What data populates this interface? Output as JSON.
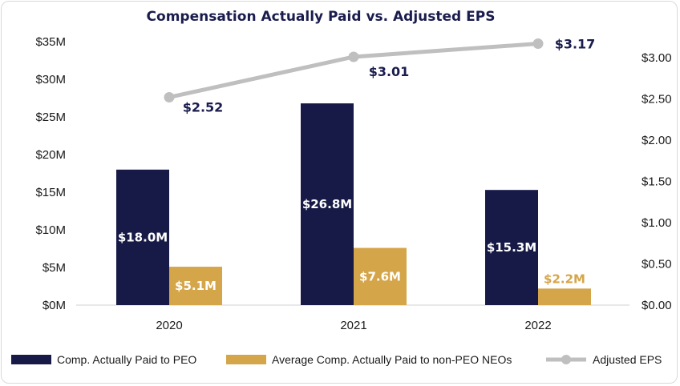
{
  "chart_data": {
    "type": "bar",
    "title": "Compensation Actually Paid vs. Adjusted EPS",
    "categories": [
      "2020",
      "2021",
      "2022"
    ],
    "series": [
      {
        "name": "Comp. Actually Paid to PEO",
        "type": "bar",
        "axis": "left",
        "color": "#171a47",
        "values": [
          18.0,
          26.8,
          15.3
        ],
        "labels": [
          "$18.0M",
          "$26.8M",
          "$15.3M"
        ]
      },
      {
        "name": "Average Comp. Actually Paid to non-PEO NEOs",
        "type": "bar",
        "axis": "right-of-pair",
        "color": "#d5a54a",
        "values": [
          5.1,
          7.6,
          2.2
        ],
        "labels": [
          "$5.1M",
          "$7.6M",
          "$2.2M"
        ]
      },
      {
        "name": "Adjusted EPS",
        "type": "line",
        "axis": "right",
        "color": "#bfbfbf",
        "values": [
          2.52,
          3.01,
          3.17
        ],
        "labels": [
          "$2.52",
          "$3.01",
          "$3.17"
        ]
      }
    ],
    "y_left": {
      "min": 0,
      "max": 35,
      "ticks": [
        0,
        5,
        10,
        15,
        20,
        25,
        30,
        35
      ],
      "tick_labels": [
        "$0M",
        "$5M",
        "$10M",
        "$15M",
        "$20M",
        "$25M",
        "$30M",
        "$35M"
      ]
    },
    "y_right": {
      "min": 0,
      "max": 3.0,
      "ticks": [
        0,
        0.5,
        1.0,
        1.5,
        2.0,
        2.5,
        3.0
      ],
      "tick_labels": [
        "$0.00",
        "$0.50",
        "$1.00",
        "$1.50",
        "$2.00",
        "$2.50",
        "$3.00"
      ]
    },
    "grid": false,
    "legend_position": "bottom"
  }
}
